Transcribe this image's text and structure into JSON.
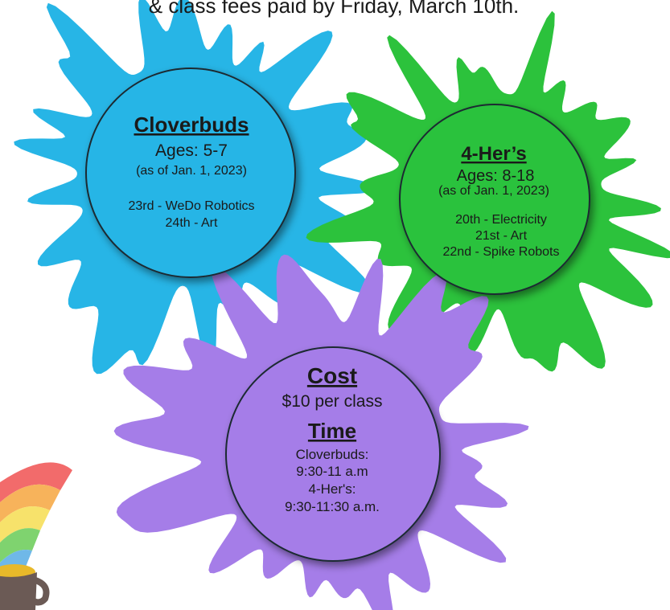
{
  "header": {
    "text": "& class fees paid by Friday, March 10th."
  },
  "cloverbuds": {
    "title": "Cloverbuds",
    "ages": "Ages: 5-7",
    "as_of": "(as of Jan. 1, 2023)",
    "classes": [
      "23rd - WeDo Robotics",
      "24th - Art"
    ]
  },
  "four_h": {
    "title": "4-Her’s",
    "ages": "Ages: 8-18",
    "as_of": "(as of Jan. 1, 2023)",
    "classes": [
      "20th - Electricity",
      "21st - Art",
      "22nd - Spike Robots"
    ]
  },
  "cost": {
    "title": "Cost",
    "price": "$10 per class",
    "time_title": "Time",
    "schedule": [
      "Cloverbuds:",
      "9:30-11 a.m",
      "4-Her's:",
      "9:30-11:30 a.m."
    ]
  }
}
